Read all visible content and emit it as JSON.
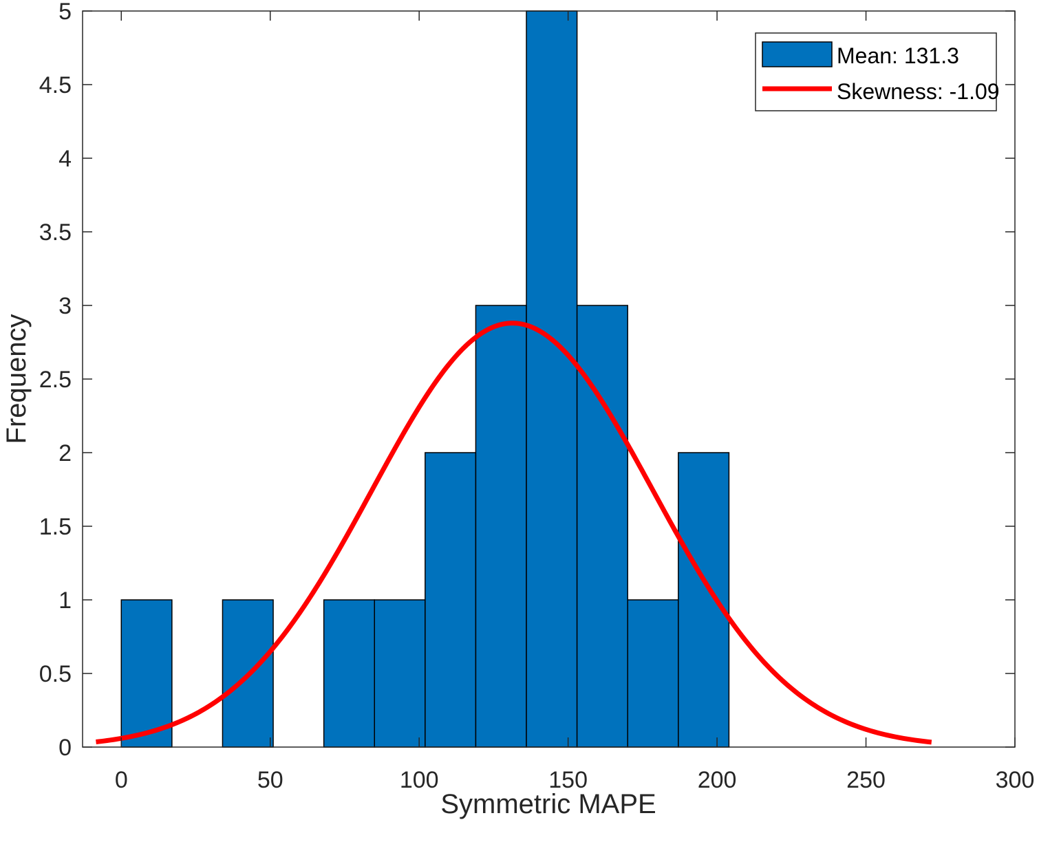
{
  "chart_data": {
    "type": "bar",
    "subtype": "histogram-with-fitted-curve",
    "xlabel": "Symmetric MAPE",
    "ylabel": "Frequency",
    "xlim": [
      -13,
      300
    ],
    "ylim": [
      0,
      5
    ],
    "xticks": [
      0,
      50,
      100,
      150,
      200,
      250,
      300
    ],
    "xtick_labels": [
      "0",
      "50",
      "100",
      "150",
      "200",
      "250",
      "300"
    ],
    "yticks": [
      0,
      0.5,
      1,
      1.5,
      2,
      2.5,
      3,
      3.5,
      4,
      4.5,
      5
    ],
    "ytick_labels": [
      "0",
      "0.5",
      "1",
      "1.5",
      "2",
      "2.5",
      "3",
      "3.5",
      "4",
      "4.5",
      "5"
    ],
    "bins": [
      {
        "start": 0,
        "end": 17,
        "count": 1
      },
      {
        "start": 17,
        "end": 34,
        "count": 0
      },
      {
        "start": 34,
        "end": 51,
        "count": 1
      },
      {
        "start": 51,
        "end": 68,
        "count": 0
      },
      {
        "start": 68,
        "end": 85,
        "count": 1
      },
      {
        "start": 85,
        "end": 102,
        "count": 1
      },
      {
        "start": 102,
        "end": 119,
        "count": 2
      },
      {
        "start": 119,
        "end": 136,
        "count": 3
      },
      {
        "start": 136,
        "end": 153,
        "count": 5
      },
      {
        "start": 153,
        "end": 170,
        "count": 3
      },
      {
        "start": 170,
        "end": 187,
        "count": 1
      },
      {
        "start": 187,
        "end": 204,
        "count": 2
      }
    ],
    "fit_curve": {
      "kind": "normal",
      "mean": 131.3,
      "peak": 2.88,
      "x_range": [
        -8.5,
        272
      ]
    },
    "series": [
      {
        "name": "Mean: 131.3",
        "kind": "histogram",
        "color": "#0072BD"
      },
      {
        "name": "Skewness: -1.09",
        "kind": "line",
        "color": "#FF0000"
      }
    ],
    "legend": {
      "position": "top-right"
    },
    "grid": false
  }
}
